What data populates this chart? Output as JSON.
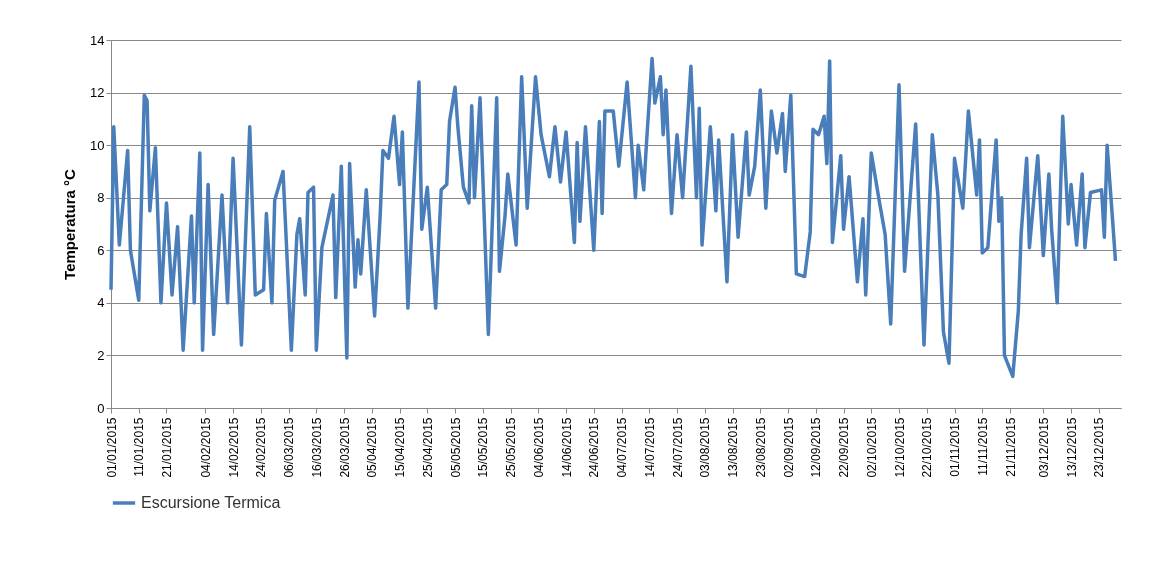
{
  "chart_data": {
    "type": "line",
    "ylabel": "Temperatura °C",
    "xlim": [
      "2015-01-01",
      "2015-12-31"
    ],
    "ylim": [
      0,
      14
    ],
    "yticks": [
      0,
      2,
      4,
      6,
      8,
      10,
      12,
      14
    ],
    "xticks": [
      {
        "value": "2015-01-01",
        "label": "01/01/2015"
      },
      {
        "value": "2015-01-11",
        "label": "11/01/2015"
      },
      {
        "value": "2015-01-21",
        "label": "21/01/2015"
      },
      {
        "value": "2015-02-04",
        "label": "04/02/2015"
      },
      {
        "value": "2015-02-14",
        "label": "14/02/2015"
      },
      {
        "value": "2015-02-24",
        "label": "24/02/2015"
      },
      {
        "value": "2015-03-06",
        "label": "06/03/2015"
      },
      {
        "value": "2015-03-16",
        "label": "16/03/2015"
      },
      {
        "value": "2015-03-26",
        "label": "26/03/2015"
      },
      {
        "value": "2015-04-05",
        "label": "05/04/2015"
      },
      {
        "value": "2015-04-15",
        "label": "15/04/2015"
      },
      {
        "value": "2015-04-25",
        "label": "25/04/2015"
      },
      {
        "value": "2015-05-05",
        "label": "05/05/2015"
      },
      {
        "value": "2015-05-15",
        "label": "15/05/2015"
      },
      {
        "value": "2015-05-25",
        "label": "25/05/2015"
      },
      {
        "value": "2015-06-04",
        "label": "04/06/2015"
      },
      {
        "value": "2015-06-14",
        "label": "14/06/2015"
      },
      {
        "value": "2015-06-24",
        "label": "24/06/2015"
      },
      {
        "value": "2015-07-04",
        "label": "04/07/2015"
      },
      {
        "value": "2015-07-14",
        "label": "14/07/2015"
      },
      {
        "value": "2015-07-24",
        "label": "24/07/2015"
      },
      {
        "value": "2015-08-03",
        "label": "03/08/2015"
      },
      {
        "value": "2015-08-13",
        "label": "13/08/2015"
      },
      {
        "value": "2015-08-23",
        "label": "23/08/2015"
      },
      {
        "value": "2015-09-02",
        "label": "02/09/2015"
      },
      {
        "value": "2015-09-12",
        "label": "12/09/2015"
      },
      {
        "value": "2015-09-22",
        "label": "22/09/2015"
      },
      {
        "value": "2015-10-02",
        "label": "02/10/2015"
      },
      {
        "value": "2015-10-12",
        "label": "12/10/2015"
      },
      {
        "value": "2015-10-22",
        "label": "22/10/2015"
      },
      {
        "value": "2015-11-01",
        "label": "01/11/2015"
      },
      {
        "value": "2015-11-11",
        "label": "11/11/2015"
      },
      {
        "value": "2015-11-21",
        "label": "21/11/2015"
      },
      {
        "value": "2015-12-03",
        "label": "03/12/2015"
      },
      {
        "value": "2015-12-13",
        "label": "13/12/2015"
      },
      {
        "value": "2015-12-23",
        "label": "23/12/2015"
      }
    ],
    "grid": "y",
    "legend": "bottom",
    "marker": "none",
    "line_style": "solid",
    "x": [
      "2015-01-01",
      "2015-01-02",
      "2015-01-04",
      "2015-01-07",
      "2015-01-08",
      "2015-01-11",
      "2015-01-13",
      "2015-01-14",
      "2015-01-15",
      "2015-01-17",
      "2015-01-19",
      "2015-01-21",
      "2015-01-23",
      "2015-01-25",
      "2015-01-27",
      "2015-01-30",
      "2015-01-31",
      "2015-02-02",
      "2015-02-03",
      "2015-02-05",
      "2015-02-07",
      "2015-02-10",
      "2015-02-12",
      "2015-02-14",
      "2015-02-17",
      "2015-02-20",
      "2015-02-22",
      "2015-02-25",
      "2015-02-26",
      "2015-02-28",
      "2015-03-01",
      "2015-03-04",
      "2015-03-07",
      "2015-03-09",
      "2015-03-10",
      "2015-03-12",
      "2015-03-13",
      "2015-03-15",
      "2015-03-16",
      "2015-03-18",
      "2015-03-22",
      "2015-03-23",
      "2015-03-25",
      "2015-03-27",
      "2015-03-28",
      "2015-03-30",
      "2015-03-31",
      "2015-04-01",
      "2015-04-03",
      "2015-04-06",
      "2015-04-08",
      "2015-04-09",
      "2015-04-11",
      "2015-04-13",
      "2015-04-15",
      "2015-04-16",
      "2015-04-18",
      "2015-04-22",
      "2015-04-23",
      "2015-04-25",
      "2015-04-28",
      "2015-04-30",
      "2015-05-02",
      "2015-05-03",
      "2015-05-05",
      "2015-05-06",
      "2015-05-08",
      "2015-05-10",
      "2015-05-11",
      "2015-05-12",
      "2015-05-14",
      "2015-05-17",
      "2015-05-20",
      "2015-05-21",
      "2015-05-23",
      "2015-05-24",
      "2015-05-27",
      "2015-05-29",
      "2015-05-31",
      "2015-06-03",
      "2015-06-05",
      "2015-06-08",
      "2015-06-10",
      "2015-06-12",
      "2015-06-14",
      "2015-06-17",
      "2015-06-18",
      "2015-06-19",
      "2015-06-21",
      "2015-06-24",
      "2015-06-26",
      "2015-06-27",
      "2015-06-28",
      "2015-07-01",
      "2015-07-03",
      "2015-07-06",
      "2015-07-09",
      "2015-07-10",
      "2015-07-12",
      "2015-07-13",
      "2015-07-15",
      "2015-07-16",
      "2015-07-18",
      "2015-07-19",
      "2015-07-20",
      "2015-07-22",
      "2015-07-24",
      "2015-07-26",
      "2015-07-29",
      "2015-07-31",
      "2015-08-01",
      "2015-08-02",
      "2015-08-05",
      "2015-08-07",
      "2015-08-08",
      "2015-08-11",
      "2015-08-13",
      "2015-08-15",
      "2015-08-18",
      "2015-08-19",
      "2015-08-21",
      "2015-08-23",
      "2015-08-25",
      "2015-08-27",
      "2015-08-29",
      "2015-08-31",
      "2015-09-01",
      "2015-09-03",
      "2015-09-05",
      "2015-09-08",
      "2015-09-10",
      "2015-09-11",
      "2015-09-13",
      "2015-09-15",
      "2015-09-16",
      "2015-09-17",
      "2015-09-18",
      "2015-09-21",
      "2015-09-22",
      "2015-09-24",
      "2015-09-27",
      "2015-09-29",
      "2015-09-30",
      "2015-10-02",
      "2015-10-05",
      "2015-10-07",
      "2015-10-09",
      "2015-10-12",
      "2015-10-14",
      "2015-10-18",
      "2015-10-21",
      "2015-10-24",
      "2015-10-26",
      "2015-10-28",
      "2015-10-30",
      "2015-11-01",
      "2015-11-04",
      "2015-11-06",
      "2015-11-09",
      "2015-11-10",
      "2015-11-11",
      "2015-11-13",
      "2015-11-16",
      "2015-11-17",
      "2015-11-18",
      "2015-11-19",
      "2015-11-22",
      "2015-11-24",
      "2015-11-25",
      "2015-11-27",
      "2015-11-28",
      "2015-12-01",
      "2015-12-03",
      "2015-12-05",
      "2015-12-06",
      "2015-12-08",
      "2015-12-10",
      "2015-12-12",
      "2015-12-13",
      "2015-12-15",
      "2015-12-17",
      "2015-12-18",
      "2015-12-20",
      "2015-12-24",
      "2015-12-25",
      "2015-12-26",
      "2015-12-28",
      "2015-12-29"
    ],
    "series": [
      {
        "name": "Escursione Termica",
        "color": "#4a7ebb",
        "values": [
          4.5,
          10.7,
          6.2,
          9.8,
          6.0,
          4.1,
          11.9,
          11.7,
          7.5,
          9.9,
          4.0,
          7.8,
          4.3,
          6.9,
          2.2,
          7.3,
          4.0,
          9.7,
          2.2,
          8.5,
          2.8,
          8.1,
          4.0,
          9.5,
          2.4,
          10.7,
          4.3,
          4.5,
          7.4,
          4.0,
          7.9,
          9.0,
          2.2,
          6.6,
          7.2,
          4.3,
          8.2,
          8.4,
          2.2,
          6.1,
          8.1,
          4.2,
          9.2,
          1.9,
          9.3,
          4.6,
          6.4,
          5.1,
          8.3,
          3.5,
          7.3,
          9.8,
          9.5,
          11.1,
          8.5,
          10.5,
          3.8,
          12.4,
          6.8,
          8.4,
          3.8,
          8.3,
          8.5,
          10.9,
          12.2,
          10.7,
          8.4,
          7.8,
          11.5,
          8.0,
          11.8,
          2.8,
          11.8,
          5.2,
          7.3,
          8.9,
          6.2,
          12.6,
          7.6,
          12.6,
          10.4,
          8.8,
          10.7,
          8.6,
          10.5,
          6.3,
          10.1,
          7.1,
          10.7,
          6.0,
          10.9,
          7.4,
          11.3,
          11.3,
          9.2,
          12.4,
          8.0,
          10.0,
          8.3,
          10.1,
          13.3,
          11.6,
          12.6,
          10.4,
          12.1,
          7.4,
          10.4,
          8.0,
          13.0,
          8.0,
          11.4,
          6.2,
          10.7,
          7.5,
          10.2,
          4.8,
          10.4,
          6.5,
          10.5,
          8.1,
          9.2,
          12.1,
          7.6,
          11.3,
          9.7,
          11.2,
          9.0,
          11.9,
          5.1,
          5.0,
          6.7,
          10.6,
          10.4,
          11.1,
          9.3,
          13.2,
          6.3,
          9.6,
          6.8,
          8.8,
          4.8,
          7.2,
          4.3,
          9.7,
          7.8,
          6.6,
          3.2,
          12.3,
          5.2,
          10.8,
          2.4,
          10.4,
          8.1,
          2.9,
          1.7,
          9.5,
          7.6,
          11.3,
          8.1,
          10.2,
          5.9,
          6.1,
          10.2,
          7.1,
          8.0,
          2.0,
          1.2,
          3.7,
          6.6,
          9.5,
          6.1,
          9.6,
          5.8,
          8.9,
          6.8,
          4.0,
          11.1,
          7.0,
          8.5,
          6.2,
          8.9,
          6.1,
          8.2,
          8.3,
          6.5,
          10.0,
          7.1,
          5.6
        ]
      }
    ]
  }
}
